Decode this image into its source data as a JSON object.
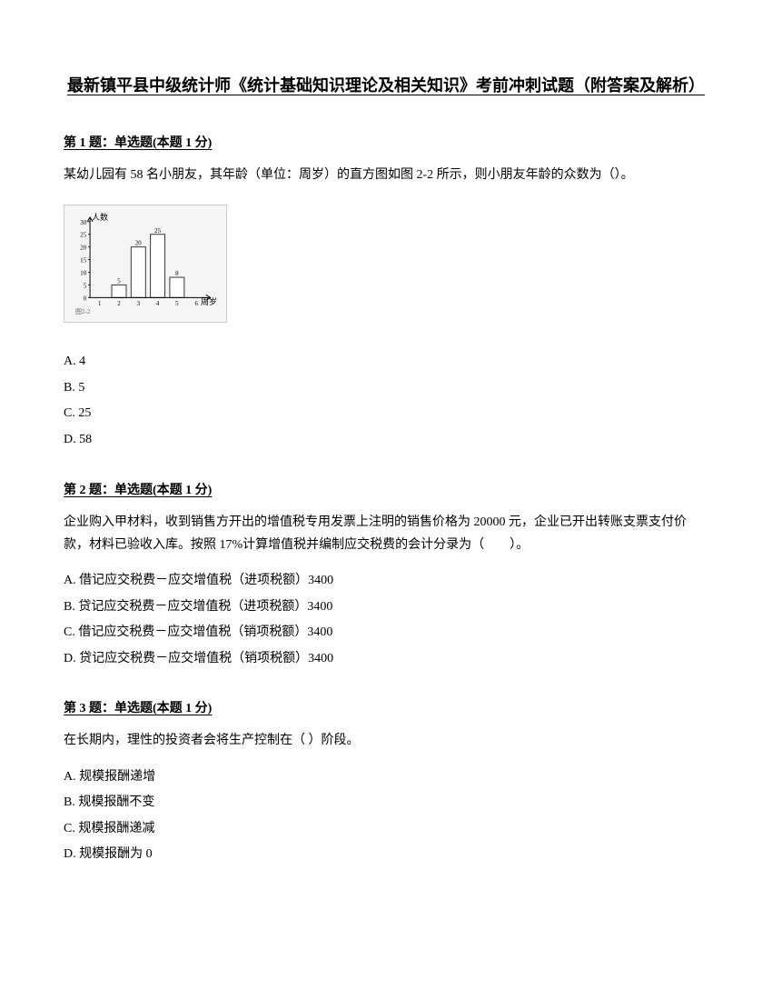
{
  "title": "最新镇平县中级统计师《统计基础知识理论及相关知识》考前冲刺试题（附答案及解析）",
  "q1": {
    "header": "第 1 题：单选题(本题 1 分)",
    "text": "某幼儿园有 58 名小朋友，其年龄（单位：周岁）的直方图如图 2-2 所示，则小朋友年龄的众数为（）。",
    "chart": {
      "y_label": "人数",
      "x_label": "周岁",
      "categories": [
        "1",
        "2",
        "3",
        "4",
        "5",
        "6"
      ],
      "values": [
        0,
        5,
        20,
        25,
        8,
        0
      ],
      "bar_labels": [
        "",
        "5",
        "20",
        "25",
        "8",
        ""
      ],
      "y_ticks": [
        0,
        5,
        10,
        15,
        20,
        25,
        30
      ],
      "bar_color": "#ffffff",
      "bar_stroke": "#333333",
      "axis_color": "#000000",
      "caption": "图2-2"
    },
    "options": {
      "a": "A. 4",
      "b": "B. 5",
      "c": "C. 25",
      "d": "D. 58"
    }
  },
  "q2": {
    "header": "第 2 题：单选题(本题 1 分)",
    "text": "企业购入甲材料，收到销售方开出的增值税专用发票上注明的销售价格为 20000 元，企业已开出转账支票支付价款，材料已验收入库。按照 17%计算增值税并编制应交税费的会计分录为（　　）。",
    "options": {
      "a": "A. 借记应交税费－应交增值税（进项税额）3400",
      "b": "B. 贷记应交税费－应交增值税（进项税额）3400",
      "c": "C. 借记应交税费－应交增值税（销项税额）3400",
      "d": "D. 贷记应交税费－应交增值税（销项税额）3400"
    }
  },
  "q3": {
    "header": "第 3 题：单选题(本题 1 分)",
    "text": "在长期内，理性的投资者会将生产控制在（  ）阶段。",
    "options": {
      "a": "A. 规模报酬递增",
      "b": "B. 规模报酬不变",
      "c": "C. 规模报酬递减",
      "d": "D. 规模报酬为 0"
    }
  }
}
